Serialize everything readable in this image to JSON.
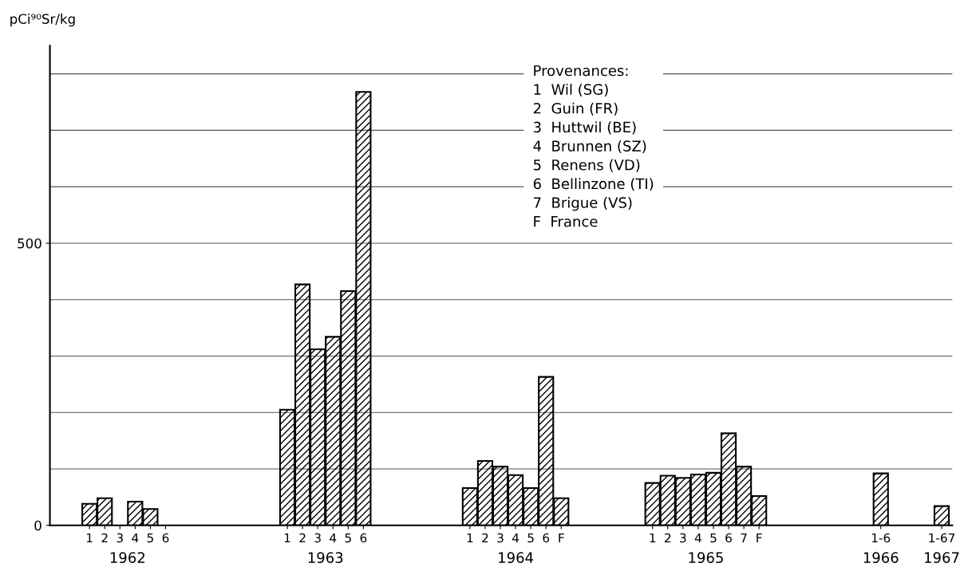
{
  "chart_data": {
    "type": "bar",
    "ylabel": "pCi⁹⁰Sr/kg",
    "categories": [
      "1",
      "2",
      "3",
      "4",
      "5",
      "6",
      null,
      null,
      null,
      null,
      null,
      null,
      null,
      "1",
      "2",
      "3",
      "4",
      "5",
      "6",
      null,
      null,
      null,
      null,
      null,
      null,
      "1",
      "2",
      "3",
      "4",
      "5",
      "6",
      "F",
      null,
      null,
      null,
      null,
      null,
      "1",
      "2",
      "3",
      "4",
      "5",
      "6",
      "7",
      "F",
      null,
      null,
      null,
      null,
      null,
      null,
      null,
      "1-6",
      null,
      null,
      null,
      "1-67"
    ],
    "values": [
      38,
      48,
      null,
      42,
      29,
      null,
      null,
      null,
      null,
      null,
      null,
      null,
      null,
      205,
      427,
      312,
      334,
      415,
      768,
      null,
      null,
      null,
      null,
      null,
      null,
      66,
      114,
      104,
      89,
      66,
      263,
      48,
      null,
      null,
      null,
      null,
      null,
      75,
      88,
      84,
      90,
      93,
      163,
      104,
      52,
      null,
      null,
      null,
      null,
      null,
      null,
      null,
      92,
      null,
      null,
      null,
      34
    ],
    "color": "#000000",
    "ylim": [
      0,
      850
    ],
    "yticks": [
      0,
      {
        "value": 100,
        "label": null
      },
      {
        "value": 200,
        "label": null
      },
      {
        "value": 300,
        "label": null
      },
      {
        "value": 400,
        "label": null
      },
      500,
      {
        "value": 600,
        "label": null
      },
      {
        "value": 700,
        "label": null
      },
      {
        "value": 800,
        "label": null
      }
    ],
    "grid": "y",
    "annotations": [
      "1962",
      "1963",
      "1964",
      "1965",
      "1966",
      "1967",
      "Provenances:\n1  Wil (SG)\n2  Guin (FR)\n3  Huttwil (BE)\n4  Brunnen (SZ)\n5  Renens (VD)\n6  Bellinzone (TI)\n7  Brigue (VS)\nF  France"
    ]
  }
}
